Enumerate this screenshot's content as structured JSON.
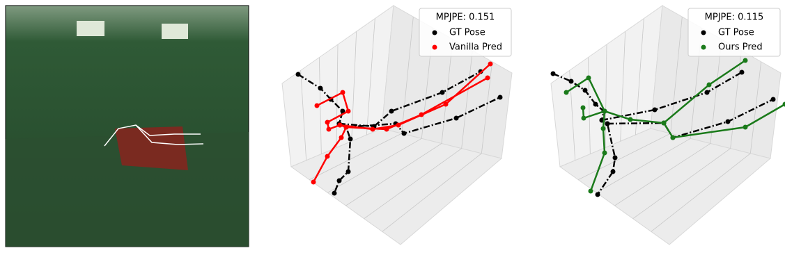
{
  "panels": [
    {
      "legend_title": "MPJPE: 0.151",
      "entries": [
        {
          "name": "GT Pose",
          "color": "#000000"
        },
        {
          "name": "Vanilla Pred",
          "color": "#ff0000"
        }
      ]
    },
    {
      "legend_title": "MPJPE: 0.115",
      "entries": [
        {
          "name": "GT Pose",
          "color": "#000000"
        },
        {
          "name": "Ours Pred",
          "color": "#1a7a1a"
        }
      ]
    }
  ]
}
